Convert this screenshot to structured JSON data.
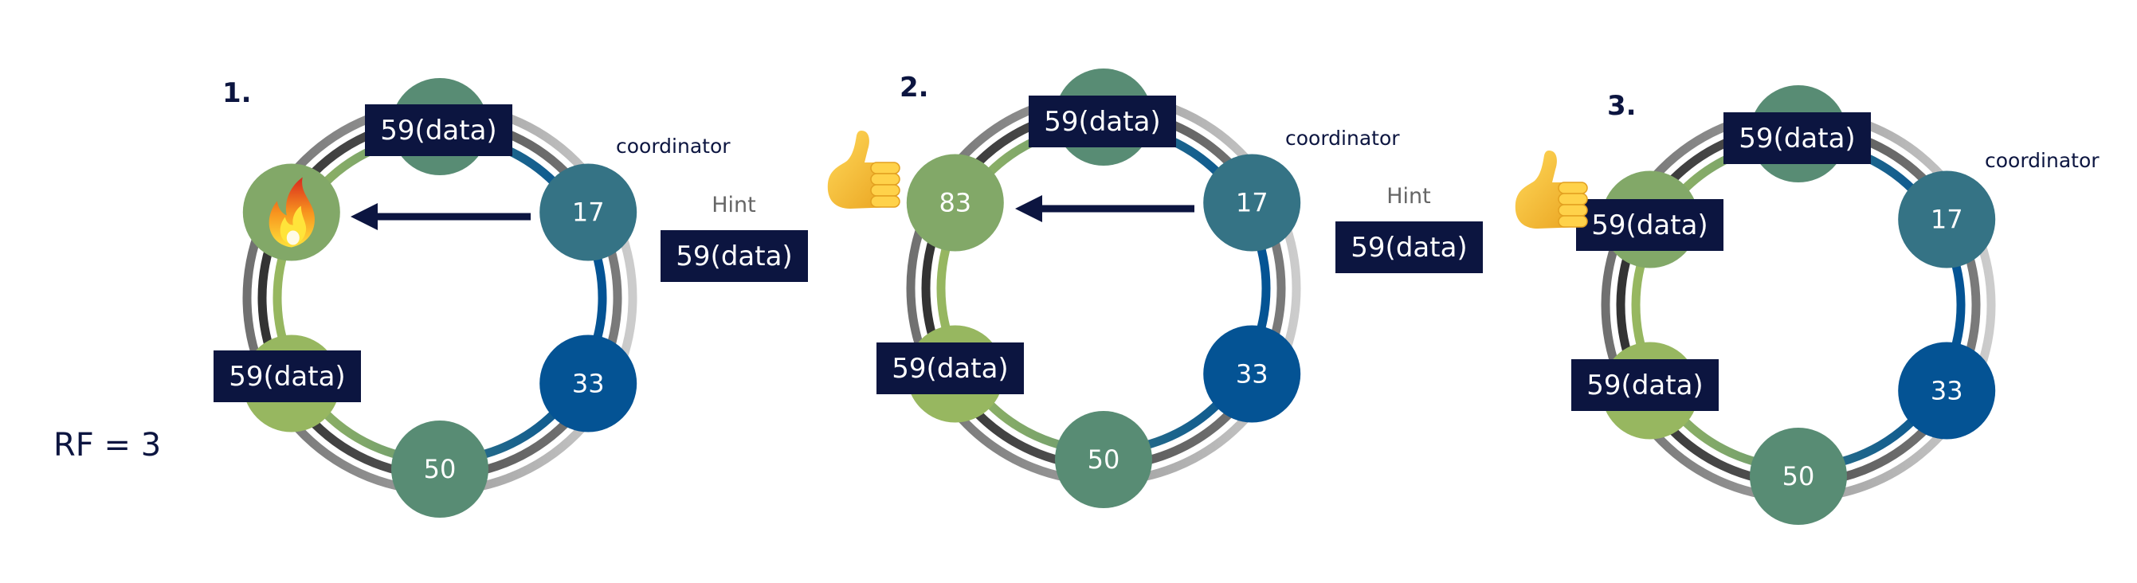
{
  "rf_label": "RF =  3",
  "colors": {
    "label_bg": "#0c1540",
    "node_top": "#588c74",
    "node_17": "#357385",
    "node_33": "#045394",
    "node_50": "#588c74",
    "node_bottom_left": "#97b760",
    "node_top_left": "#82a868",
    "arrow": "#0c1540"
  },
  "diagrams": [
    {
      "step": "1.",
      "coordinator": "coordinator",
      "hint": "Hint",
      "hint_data": "59(data)",
      "nodes": [
        "",
        "17",
        "33",
        "50",
        "",
        ""
      ],
      "top_left_icon": "fire-icon",
      "replicas": [
        "59(data)",
        "59(data)"
      ]
    },
    {
      "step": "2.",
      "coordinator": "coordinator",
      "hint": "Hint",
      "hint_data": "59(data)",
      "nodes": [
        "",
        "17",
        "33",
        "50",
        "",
        "83"
      ],
      "side_icon": "thumbs-up-icon",
      "replicas": [
        "59(data)",
        "59(data)"
      ]
    },
    {
      "step": "3.",
      "coordinator": "coordinator",
      "nodes": [
        "",
        "17",
        "33",
        "50",
        "",
        ""
      ],
      "side_icon": "thumbs-up-icon",
      "replicas": [
        "59(data)",
        "59(data)",
        "59(data)"
      ]
    }
  ]
}
